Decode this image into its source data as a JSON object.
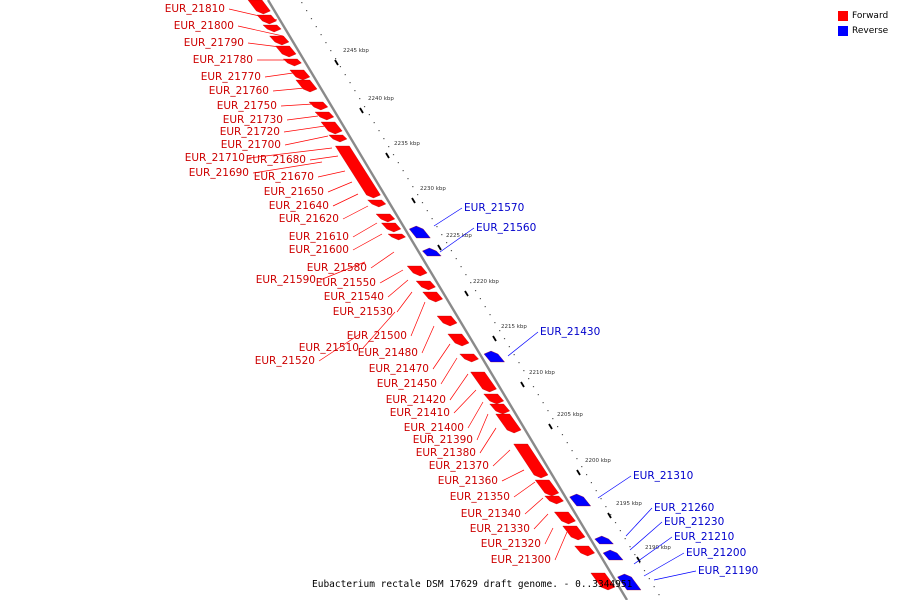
{
  "title": "Eubacterium rectale DSM 17629 draft genome. - 0..3344951",
  "legend": {
    "forward_label": "Forward",
    "reverse_label": "Reverse",
    "forward_color": "#ff0000",
    "reverse_color": "#0000ff"
  },
  "ticks": [
    "2245 kbp",
    "2240 kbp",
    "2235 kbp",
    "2230 kbp",
    "2225 kbp",
    "2220 kbp",
    "2215 kbp",
    "2210 kbp",
    "2205 kbp",
    "2200 kbp",
    "2195 kbp",
    "2190 kbp"
  ],
  "forward_genes": [
    "EUR_21810",
    "EUR_21800",
    "EUR_21790",
    "EUR_21780",
    "EUR_21770",
    "EUR_21760",
    "EUR_21750",
    "EUR_21730",
    "EUR_21720",
    "EUR_21700",
    "EUR_21710",
    "EUR_21680",
    "EUR_21690",
    "EUR_21670",
    "EUR_21650",
    "EUR_21640",
    "EUR_21620",
    "EUR_21610",
    "EUR_21600",
    "EUR_21580",
    "EUR_21590",
    "EUR_21550",
    "EUR_21540",
    "EUR_21530",
    "EUR_21500",
    "EUR_21510",
    "EUR_21480",
    "EUR_21520",
    "EUR_21470",
    "EUR_21450",
    "EUR_21420",
    "EUR_21410",
    "EUR_21400",
    "EUR_21390",
    "EUR_21380",
    "EUR_21370",
    "EUR_21360",
    "EUR_21350",
    "EUR_21340",
    "EUR_21330",
    "EUR_21320",
    "EUR_21300"
  ],
  "reverse_genes": [
    "EUR_21570",
    "EUR_21560",
    "EUR_21430",
    "EUR_21310",
    "EUR_21260",
    "EUR_21230",
    "EUR_21210",
    "EUR_21200",
    "EUR_21190"
  ]
}
